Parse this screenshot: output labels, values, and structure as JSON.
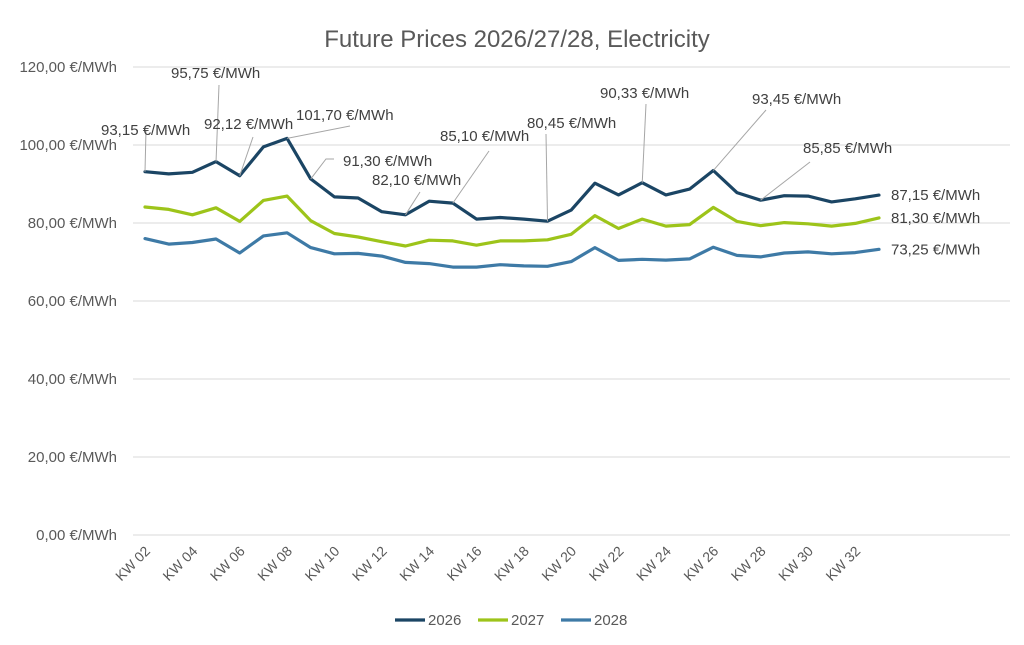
{
  "chart_data": {
    "type": "line",
    "title": "Future Prices 2026/27/28, Electricity",
    "xlabel": "",
    "ylabel": "",
    "ylim": [
      0,
      120
    ],
    "yticks": [
      0,
      20,
      40,
      60,
      80,
      100,
      120
    ],
    "ytick_labels": [
      "0,00 €/MWh",
      "20,00 €/MWh",
      "40,00 €/MWh",
      "60,00 €/MWh",
      "80,00 €/MWh",
      "100,00 €/MWh",
      "120,00 €/MWh"
    ],
    "grid": true,
    "legend_position": "bottom",
    "x": [
      "KW 02",
      "KW 03",
      "KW 04",
      "KW 05",
      "KW 06",
      "KW 07",
      "KW 08",
      "KW 09",
      "KW 10",
      "KW 11",
      "KW 12",
      "KW 13",
      "KW 14",
      "KW 15",
      "KW 16",
      "KW 17",
      "KW 18",
      "KW 19",
      "KW 20",
      "KW 21",
      "KW 22",
      "KW 23",
      "KW 24",
      "KW 25",
      "KW 26",
      "KW 27",
      "KW 28",
      "KW 29",
      "KW 30",
      "KW 31",
      "KW 32",
      "KW 33"
    ],
    "xtick_labels": [
      "KW 02",
      "KW 04",
      "KW 06",
      "KW 08",
      "KW 10",
      "KW 12",
      "KW 14",
      "KW 16",
      "KW 18",
      "KW 20",
      "KW 22",
      "KW 24",
      "KW 26",
      "KW 28",
      "KW 30",
      "KW 32"
    ],
    "series": [
      {
        "name": "2026",
        "color": "#1b4564",
        "values": [
          93.15,
          92.6,
          93.0,
          95.75,
          92.12,
          99.5,
          101.7,
          91.3,
          86.7,
          86.4,
          82.9,
          82.1,
          85.6,
          85.1,
          81.0,
          81.4,
          81.0,
          80.45,
          83.3,
          90.2,
          87.2,
          90.33,
          87.2,
          88.7,
          93.45,
          87.8,
          85.85,
          87.0,
          86.9,
          85.4,
          86.2,
          87.15
        ],
        "labels": [
          {
            "index": 0,
            "text": "93,15 €/MWh"
          },
          {
            "index": 3,
            "text": "95,75 €/MWh"
          },
          {
            "index": 4,
            "text": "92,12 €/MWh"
          },
          {
            "index": 6,
            "text": "101,70 €/MWh"
          },
          {
            "index": 7,
            "text": "91,30 €/MWh"
          },
          {
            "index": 11,
            "text": "82,10 €/MWh"
          },
          {
            "index": 13,
            "text": "85,10 €/MWh"
          },
          {
            "index": 17,
            "text": "80,45 €/MWh"
          },
          {
            "index": 21,
            "text": "90,33 €/MWh"
          },
          {
            "index": 24,
            "text": "93,45 €/MWh"
          },
          {
            "index": 26,
            "text": "85,85 €/MWh"
          },
          {
            "index": 31,
            "text": "87,15 €/MWh"
          }
        ]
      },
      {
        "name": "2027",
        "color": "#9dc41a",
        "values": [
          84.1,
          83.5,
          82.1,
          83.9,
          80.4,
          85.8,
          86.9,
          80.6,
          77.3,
          76.4,
          75.2,
          74.1,
          75.6,
          75.4,
          74.3,
          75.4,
          75.4,
          75.7,
          77.1,
          81.9,
          78.6,
          81.0,
          79.2,
          79.6,
          84.0,
          80.4,
          79.3,
          80.1,
          79.8,
          79.2,
          79.9,
          81.3
        ],
        "labels": [
          {
            "index": 31,
            "text": "81,30 €/MWh"
          }
        ]
      },
      {
        "name": "2028",
        "color": "#3e7aa6",
        "values": [
          76.0,
          74.6,
          75.0,
          75.9,
          72.3,
          76.7,
          77.5,
          73.7,
          72.1,
          72.2,
          71.5,
          69.9,
          69.6,
          68.7,
          68.7,
          69.3,
          69.0,
          68.9,
          70.1,
          73.7,
          70.4,
          70.7,
          70.5,
          70.8,
          73.8,
          71.7,
          71.3,
          72.3,
          72.6,
          72.1,
          72.4,
          73.25
        ],
        "labels": [
          {
            "index": 31,
            "text": "73,25 €/MWh"
          }
        ]
      }
    ]
  }
}
